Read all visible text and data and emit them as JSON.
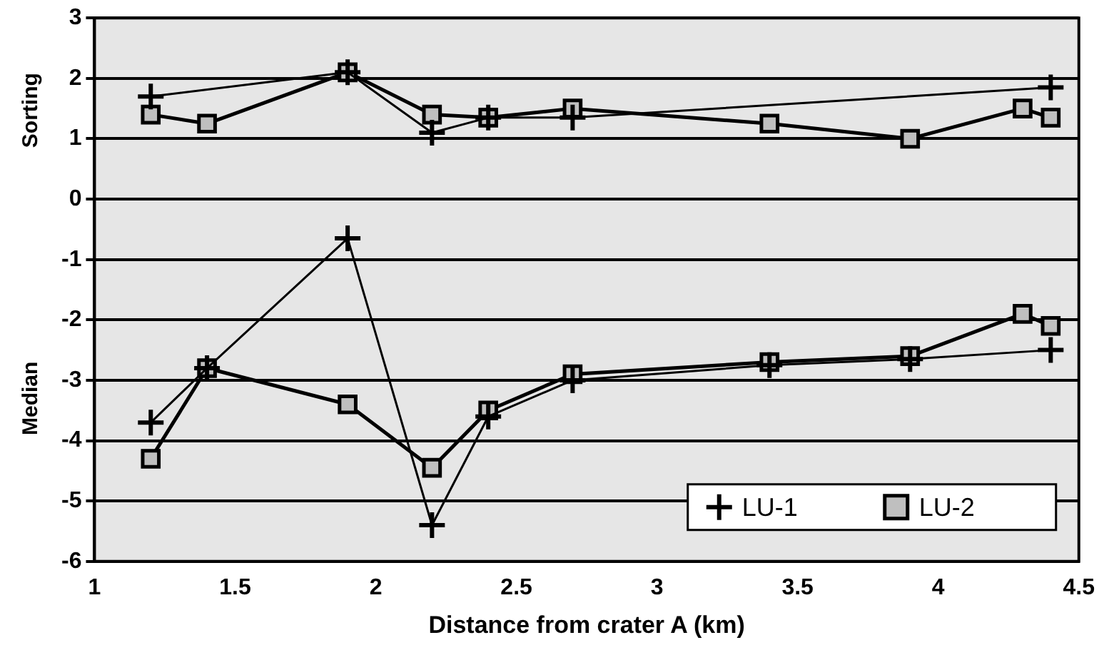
{
  "chart_data": {
    "type": "line",
    "xlabel": "Distance from crater A (km)",
    "annotations": [
      "Sorting",
      "Median"
    ],
    "xlim": [
      1,
      4.5
    ],
    "xticks": [
      1,
      1.5,
      2,
      2.5,
      3,
      3.5,
      4,
      4.5
    ],
    "ylim": [
      -6,
      3
    ],
    "yticks": [
      -6,
      -5,
      -4,
      -3,
      -2,
      -1,
      0,
      1,
      2,
      3
    ],
    "grid": "y",
    "legend": "bottom right",
    "line_style": "solid",
    "series": [
      {
        "name": "LU-1",
        "color": "#000000",
        "marker": "cross",
        "x": [
          1.2,
          1.9,
          2.2,
          2.4,
          2.7,
          4.4
        ],
        "values": [
          1.7,
          2.1,
          1.1,
          1.35,
          1.35,
          1.85
        ]
      },
      {
        "name": "LU-2",
        "color": "#bfbfbf",
        "marker": "square",
        "x": [
          1.2,
          1.4,
          1.9,
          2.2,
          2.4,
          2.7,
          3.4,
          3.9,
          4.3,
          4.4
        ],
        "values": [
          1.4,
          1.25,
          2.1,
          1.4,
          1.35,
          1.5,
          1.25,
          1.0,
          1.5,
          1.35
        ]
      },
      {
        "color": "#000000",
        "marker": "cross",
        "x": [
          1.2,
          1.4,
          1.9,
          2.2,
          2.4,
          2.7,
          3.4,
          3.9,
          4.4
        ],
        "values": [
          -3.7,
          -2.8,
          -0.65,
          -5.4,
          -3.6,
          -3.0,
          -2.75,
          -2.65,
          -2.5
        ]
      },
      {
        "color": "#bfbfbf",
        "marker": "square",
        "x": [
          1.2,
          1.4,
          1.9,
          2.2,
          2.4,
          2.7,
          3.4,
          3.9,
          4.3,
          4.4
        ],
        "values": [
          -4.3,
          -2.8,
          -3.4,
          -4.45,
          -3.5,
          -2.9,
          -2.7,
          -2.6,
          -1.9,
          -2.1
        ]
      }
    ]
  }
}
